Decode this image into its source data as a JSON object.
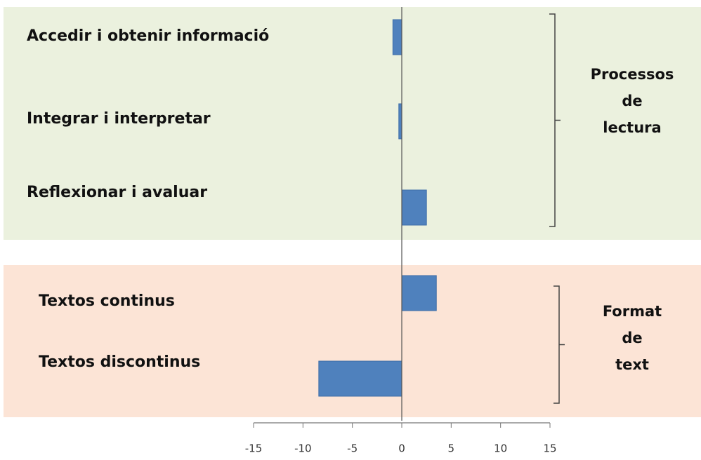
{
  "chart_data": {
    "type": "bar",
    "orientation": "horizontal",
    "categories": [
      "Accedir i obtenir informació",
      "Integrar i interpretar",
      "Reflexionar i avaluar",
      "Textos continus",
      "Textos discontinus"
    ],
    "values": [
      -0.9,
      -0.3,
      2.5,
      3.5,
      -8.4
    ],
    "color": "#4f81bd",
    "xlim": [
      -15,
      15
    ],
    "xticks": [
      -15,
      -10,
      -5,
      0,
      5,
      10,
      15
    ],
    "groups": [
      {
        "label_lines": [
          "Processos",
          "de",
          "lectura"
        ],
        "color": "#ebf1de"
      },
      {
        "label_lines": [
          "Format",
          "de",
          "text"
        ],
        "color": "#fce4d6"
      }
    ]
  }
}
